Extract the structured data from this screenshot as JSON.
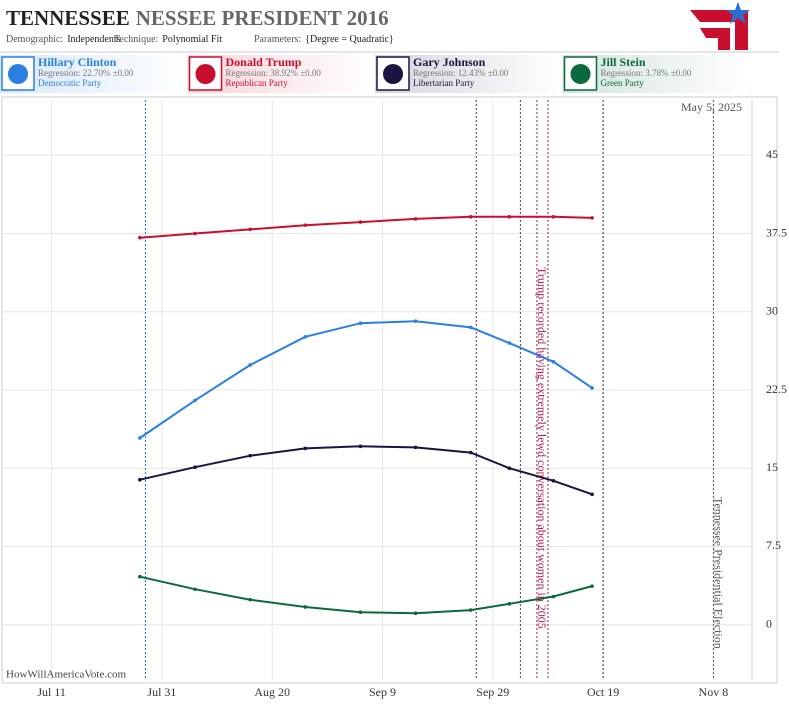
{
  "chart_data": {
    "type": "line",
    "title_parts": [
      "TENNESSEE",
      "NESSEE PRESIDENT 2016"
    ],
    "params": [
      [
        "Demographic:",
        "Independents"
      ],
      [
        "Technique:",
        "Polynomial Fit"
      ],
      [
        "Parameters:",
        "{Degree = Quadratic}"
      ]
    ],
    "date_label": "May 5, 2025",
    "watermark": "HowWillAmericaVote.com",
    "x": [
      "Jul 27",
      "Aug 6",
      "Aug 16",
      "Aug 26",
      "Sep 5",
      "Sep 15",
      "Sep 25",
      "Oct 2",
      "Oct 10",
      "Oct 17"
    ],
    "series": [
      {
        "name": "Hillary Clinton",
        "regression": "Regression: 22.70% ±0.00",
        "party": "Democratic Party",
        "color": "#2a7fe0",
        "values": [
          17.9,
          21.5,
          24.9,
          27.6,
          28.9,
          29.1,
          28.5,
          27.0,
          25.2,
          22.7
        ]
      },
      {
        "name": "Donald Trump",
        "regression": "Regression: 38.92% ±0.00",
        "party": "Republican Party",
        "color": "#c8102e",
        "values": [
          37.1,
          37.5,
          37.9,
          38.3,
          38.6,
          38.9,
          39.1,
          39.1,
          39.1,
          39.0
        ]
      },
      {
        "name": "Gary Johnson",
        "regression": "Regression: 12.43% ±0.00",
        "party": "Libertarian Party",
        "color": "#1a1440",
        "values": [
          13.9,
          15.1,
          16.2,
          16.9,
          17.1,
          17.0,
          16.5,
          15.0,
          13.8,
          12.5
        ]
      },
      {
        "name": "Jill Stein",
        "regression": "Regression: 3.78% ±0.00",
        "party": "Green Party",
        "color": "#0b6a3c",
        "values": [
          4.6,
          3.4,
          2.4,
          1.7,
          1.2,
          1.1,
          1.4,
          2.0,
          2.7,
          3.7
        ]
      }
    ],
    "xlim": [
      "Jul 2",
      "Nov 15"
    ],
    "xticks": [
      "Jul 11",
      "Jul 31",
      "Aug 20",
      "Sep 9",
      "Sep 29",
      "Oct 19",
      "Nov 8"
    ],
    "ylim": [
      -5.3,
      50.3
    ],
    "yticks": [
      0,
      7.5,
      15,
      22.5,
      30,
      37.5,
      45
    ],
    "grid": true,
    "vlines": [
      {
        "x": "Jul 28",
        "color": "#1a6fb3"
      },
      {
        "x": "Sep 26",
        "color": "#5a2a6a"
      },
      {
        "x": "Oct 4",
        "color": "#5a2a6a"
      },
      {
        "x": "Oct 9",
        "color": "#8a2060"
      },
      {
        "x": "Oct 19",
        "color": "#333344"
      }
    ],
    "annotations": [
      {
        "x": "Oct 7",
        "color": "#b0184a",
        "text": "Trump recorded having extremely lewd conversation about women in 2005"
      },
      {
        "x": "Nov 8",
        "color": "#555555",
        "text": "Tennessee Presidential Election"
      }
    ]
  }
}
